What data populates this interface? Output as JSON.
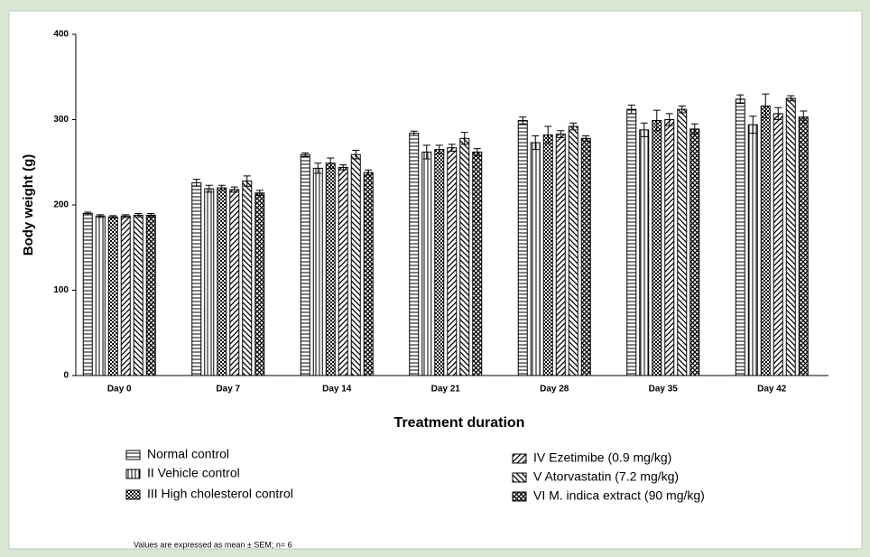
{
  "chart_data": {
    "type": "bar",
    "y_label": "Body weight (g)",
    "x_label": "Treatment duration",
    "note": "Values are expressed as mean ± SEM; n= 6",
    "categories": [
      "Day 0",
      "Day 7",
      "Day 14",
      "Day 21",
      "Day 28",
      "Day 35",
      "Day 42"
    ],
    "ylim": [
      0,
      400
    ],
    "yticks": [
      0,
      100,
      200,
      300,
      400
    ],
    "series": [
      {
        "name": "Normal control",
        "pattern": "horizontal",
        "color": "#000000",
        "values": [
          190,
          226,
          259,
          284,
          299,
          312,
          324
        ],
        "errors": [
          1.5,
          4,
          2,
          2.5,
          4,
          5,
          5
        ]
      },
      {
        "name": "II Vehicle control",
        "pattern": "vertical",
        "color": "#000000",
        "values": [
          187,
          219,
          243,
          262,
          273,
          288,
          294
        ],
        "errors": [
          1.5,
          4,
          6,
          8,
          8,
          8,
          10
        ]
      },
      {
        "name": "III High cholesterol control",
        "pattern": "checker",
        "color": "#000000",
        "values": [
          186,
          220,
          249,
          265,
          282,
          299,
          316
        ],
        "errors": [
          1.5,
          3,
          6,
          5,
          10,
          12,
          14
        ]
      },
      {
        "name": "IV Ezetimibe (0.9 mg/kg)",
        "pattern": "diagonal-up",
        "color": "#000000",
        "values": [
          187,
          218,
          244,
          267,
          283,
          300,
          307
        ],
        "errors": [
          1.5,
          3,
          3,
          4,
          4,
          7,
          7
        ]
      },
      {
        "name": "V Atorvastatin (7.2 mg/kg)",
        "pattern": "diagonal-down",
        "color": "#000000",
        "values": [
          188,
          228,
          259,
          278,
          292,
          312,
          325
        ],
        "errors": [
          2,
          6,
          5,
          7,
          4,
          4,
          3
        ]
      },
      {
        "name": "VI M. indica extract (90 mg/kg)",
        "pattern": "crosshatch",
        "color": "#000000",
        "values": [
          188,
          214,
          238,
          262,
          278,
          289,
          303
        ],
        "errors": [
          2,
          3,
          3,
          4,
          3,
          6,
          7
        ]
      }
    ]
  }
}
